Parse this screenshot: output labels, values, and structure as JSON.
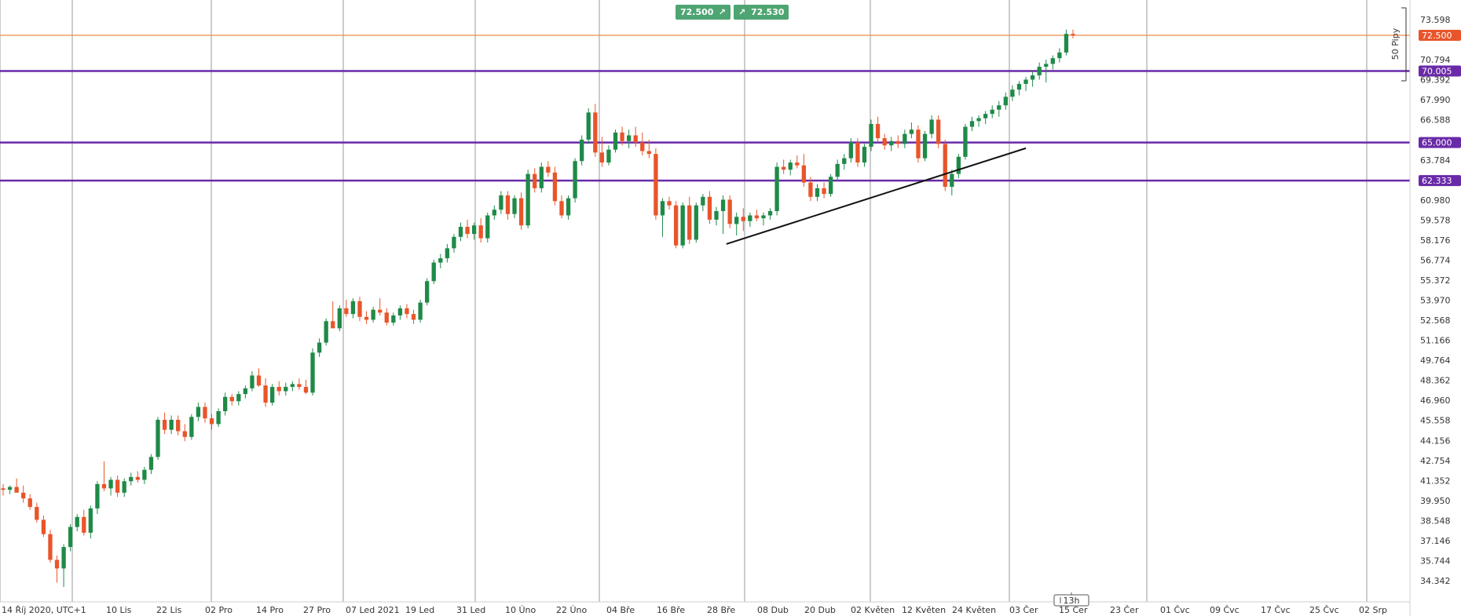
{
  "quote": {
    "sell_price": "72.500",
    "buy_price": "72.530",
    "sell_icon": "arrow-up-right-icon",
    "buy_icon": "arrow-up-right-icon"
  },
  "pips_label": "50 Pipy",
  "timer_label": "13h",
  "colors": {
    "up": "#1f8a48",
    "down": "#e8552a",
    "level": "#6a2aa8",
    "current": "#f08a4b",
    "grid": "#9a9a9a"
  },
  "chart_data": {
    "type": "candlestick",
    "title": "",
    "y_ticks": [
      "73.598",
      "70.794",
      "69.392",
      "67.990",
      "66.588",
      "63.784",
      "60.980",
      "59.578",
      "58.176",
      "56.774",
      "55.372",
      "53.970",
      "52.568",
      "51.166",
      "49.764",
      "48.362",
      "46.960",
      "45.558",
      "44.156",
      "42.754",
      "41.352",
      "39.950",
      "38.548",
      "37.146",
      "35.744",
      "34.342"
    ],
    "ylim": [
      33.7,
      74.6
    ],
    "x_ticks": [
      "14 Říj 2020, UTC+1",
      "10 Lis",
      "22 Lis",
      "02 Pro",
      "14 Pro",
      "27 Pro",
      "07 Led 2021",
      "19 Led",
      "31 Led",
      "10 Úno",
      "22 Úno",
      "04 Bře",
      "16 Bře",
      "28 Bře",
      "08 Dub",
      "20 Dub",
      "02 Květen",
      "12 Květen",
      "24 Květen",
      "03 Čer",
      "15 Čer",
      "23 Čer",
      "01 Čvc",
      "09 Čvc",
      "17 Čvc",
      "25 Čvc",
      "02 Srp"
    ],
    "levels": [
      {
        "value": 72.5,
        "label": "72.500",
        "kind": "current"
      },
      {
        "value": 70.005,
        "label": "70.005",
        "kind": "resistance"
      },
      {
        "value": 65.0,
        "label": "65.000",
        "kind": "resistance"
      },
      {
        "value": 62.333,
        "label": "62.333",
        "kind": "support"
      }
    ],
    "trendline": {
      "from": [
        36,
        57.9
      ],
      "to": [
        51,
        64.6
      ]
    },
    "candles": [
      {
        "o": 40.8,
        "h": 41.1,
        "l": 40.3,
        "c": 40.7
      },
      {
        "o": 40.7,
        "h": 41.0,
        "l": 40.4,
        "c": 40.9
      },
      {
        "o": 40.9,
        "h": 41.5,
        "l": 40.6,
        "c": 40.5
      },
      {
        "o": 40.5,
        "h": 41.0,
        "l": 39.8,
        "c": 40.1
      },
      {
        "o": 40.1,
        "h": 40.4,
        "l": 39.3,
        "c": 39.5
      },
      {
        "o": 39.5,
        "h": 39.8,
        "l": 38.4,
        "c": 38.6
      },
      {
        "o": 38.6,
        "h": 38.9,
        "l": 37.4,
        "c": 37.6
      },
      {
        "o": 37.6,
        "h": 37.9,
        "l": 35.6,
        "c": 35.8
      },
      {
        "o": 35.8,
        "h": 36.1,
        "l": 34.2,
        "c": 35.2
      },
      {
        "o": 35.2,
        "h": 36.9,
        "l": 33.9,
        "c": 36.7
      },
      {
        "o": 36.7,
        "h": 38.3,
        "l": 36.4,
        "c": 38.1
      },
      {
        "o": 38.1,
        "h": 39.0,
        "l": 37.8,
        "c": 38.8
      },
      {
        "o": 38.8,
        "h": 39.3,
        "l": 37.5,
        "c": 37.7
      },
      {
        "o": 37.7,
        "h": 39.6,
        "l": 37.3,
        "c": 39.4
      },
      {
        "o": 39.4,
        "h": 41.3,
        "l": 39.0,
        "c": 41.1
      },
      {
        "o": 41.1,
        "h": 42.7,
        "l": 40.6,
        "c": 40.8
      },
      {
        "o": 40.8,
        "h": 41.6,
        "l": 40.3,
        "c": 41.4
      },
      {
        "o": 41.4,
        "h": 41.7,
        "l": 40.2,
        "c": 40.5
      },
      {
        "o": 40.5,
        "h": 41.5,
        "l": 40.2,
        "c": 41.3
      },
      {
        "o": 41.3,
        "h": 41.9,
        "l": 41.0,
        "c": 41.6
      },
      {
        "o": 41.6,
        "h": 42.0,
        "l": 41.2,
        "c": 41.4
      },
      {
        "o": 41.4,
        "h": 42.3,
        "l": 41.1,
        "c": 42.1
      },
      {
        "o": 42.1,
        "h": 43.2,
        "l": 41.8,
        "c": 43.0
      },
      {
        "o": 43.0,
        "h": 45.8,
        "l": 42.8,
        "c": 45.6
      },
      {
        "o": 45.6,
        "h": 46.1,
        "l": 44.6,
        "c": 44.9
      },
      {
        "o": 44.9,
        "h": 45.9,
        "l": 44.6,
        "c": 45.6
      },
      {
        "o": 45.6,
        "h": 45.9,
        "l": 44.5,
        "c": 44.8
      },
      {
        "o": 44.8,
        "h": 45.3,
        "l": 44.1,
        "c": 44.4
      },
      {
        "o": 44.4,
        "h": 46.0,
        "l": 44.2,
        "c": 45.8
      },
      {
        "o": 45.8,
        "h": 46.8,
        "l": 45.5,
        "c": 46.5
      },
      {
        "o": 46.5,
        "h": 46.8,
        "l": 45.4,
        "c": 45.7
      },
      {
        "o": 45.7,
        "h": 46.0,
        "l": 44.9,
        "c": 45.3
      },
      {
        "o": 45.3,
        "h": 46.4,
        "l": 45.1,
        "c": 46.2
      },
      {
        "o": 46.2,
        "h": 47.5,
        "l": 45.9,
        "c": 47.2
      },
      {
        "o": 47.2,
        "h": 47.4,
        "l": 46.6,
        "c": 46.9
      },
      {
        "o": 46.9,
        "h": 47.6,
        "l": 46.6,
        "c": 47.4
      },
      {
        "o": 47.4,
        "h": 48.0,
        "l": 47.1,
        "c": 47.8
      },
      {
        "o": 47.8,
        "h": 49.0,
        "l": 47.6,
        "c": 48.7
      },
      {
        "o": 48.7,
        "h": 49.2,
        "l": 47.9,
        "c": 48.0
      },
      {
        "o": 48.0,
        "h": 48.5,
        "l": 46.5,
        "c": 46.8
      },
      {
        "o": 46.8,
        "h": 48.1,
        "l": 46.6,
        "c": 47.9
      },
      {
        "o": 47.9,
        "h": 48.3,
        "l": 47.3,
        "c": 47.6
      },
      {
        "o": 47.6,
        "h": 48.2,
        "l": 47.3,
        "c": 47.9
      },
      {
        "o": 47.9,
        "h": 48.3,
        "l": 47.6,
        "c": 48.1
      },
      {
        "o": 48.1,
        "h": 48.5,
        "l": 47.7,
        "c": 47.9
      },
      {
        "o": 47.9,
        "h": 48.4,
        "l": 47.4,
        "c": 47.5
      },
      {
        "o": 47.5,
        "h": 50.6,
        "l": 47.3,
        "c": 50.3
      },
      {
        "o": 50.3,
        "h": 51.3,
        "l": 50.0,
        "c": 51.0
      },
      {
        "o": 51.0,
        "h": 52.7,
        "l": 50.8,
        "c": 52.5
      },
      {
        "o": 52.5,
        "h": 53.9,
        "l": 52.2,
        "c": 52.0
      },
      {
        "o": 52.0,
        "h": 53.6,
        "l": 51.8,
        "c": 53.4
      },
      {
        "o": 53.4,
        "h": 54.0,
        "l": 52.8,
        "c": 53.0
      },
      {
        "o": 53.0,
        "h": 54.1,
        "l": 52.7,
        "c": 53.9
      },
      {
        "o": 53.9,
        "h": 54.2,
        "l": 52.5,
        "c": 52.8
      },
      {
        "o": 52.8,
        "h": 53.2,
        "l": 52.3,
        "c": 52.6
      },
      {
        "o": 52.6,
        "h": 53.5,
        "l": 52.4,
        "c": 53.3
      },
      {
        "o": 53.3,
        "h": 54.1,
        "l": 52.9,
        "c": 53.1
      },
      {
        "o": 53.1,
        "h": 53.4,
        "l": 52.2,
        "c": 52.4
      },
      {
        "o": 52.4,
        "h": 53.1,
        "l": 52.2,
        "c": 52.9
      },
      {
        "o": 52.9,
        "h": 53.6,
        "l": 52.6,
        "c": 53.4
      },
      {
        "o": 53.4,
        "h": 53.7,
        "l": 52.7,
        "c": 53.0
      },
      {
        "o": 53.0,
        "h": 53.3,
        "l": 52.3,
        "c": 52.6
      },
      {
        "o": 52.6,
        "h": 54.0,
        "l": 52.4,
        "c": 53.8
      },
      {
        "o": 53.8,
        "h": 55.5,
        "l": 53.6,
        "c": 55.3
      },
      {
        "o": 55.3,
        "h": 56.8,
        "l": 55.1,
        "c": 56.6
      },
      {
        "o": 56.6,
        "h": 57.2,
        "l": 56.2,
        "c": 56.9
      },
      {
        "o": 56.9,
        "h": 57.9,
        "l": 56.6,
        "c": 57.6
      },
      {
        "o": 57.6,
        "h": 58.6,
        "l": 57.3,
        "c": 58.4
      },
      {
        "o": 58.4,
        "h": 59.4,
        "l": 58.1,
        "c": 59.1
      },
      {
        "o": 59.1,
        "h": 59.6,
        "l": 58.3,
        "c": 58.6
      },
      {
        "o": 58.6,
        "h": 59.4,
        "l": 58.2,
        "c": 59.2
      },
      {
        "o": 59.2,
        "h": 59.7,
        "l": 58.0,
        "c": 58.3
      },
      {
        "o": 58.3,
        "h": 60.1,
        "l": 58.0,
        "c": 59.9
      },
      {
        "o": 59.9,
        "h": 60.6,
        "l": 59.6,
        "c": 60.3
      },
      {
        "o": 60.3,
        "h": 61.6,
        "l": 60.0,
        "c": 61.3
      },
      {
        "o": 61.3,
        "h": 61.6,
        "l": 59.6,
        "c": 60.0
      },
      {
        "o": 60.0,
        "h": 61.3,
        "l": 59.7,
        "c": 61.1
      },
      {
        "o": 61.1,
        "h": 61.5,
        "l": 58.9,
        "c": 59.2
      },
      {
        "o": 59.2,
        "h": 63.1,
        "l": 59.0,
        "c": 62.8
      },
      {
        "o": 62.8,
        "h": 63.2,
        "l": 61.5,
        "c": 61.8
      },
      {
        "o": 61.8,
        "h": 63.6,
        "l": 61.5,
        "c": 63.3
      },
      {
        "o": 63.3,
        "h": 63.7,
        "l": 62.6,
        "c": 62.9
      },
      {
        "o": 62.9,
        "h": 63.3,
        "l": 60.6,
        "c": 60.9
      },
      {
        "o": 60.9,
        "h": 61.3,
        "l": 59.7,
        "c": 59.9
      },
      {
        "o": 59.9,
        "h": 61.3,
        "l": 59.6,
        "c": 61.1
      },
      {
        "o": 61.1,
        "h": 63.9,
        "l": 60.8,
        "c": 63.7
      },
      {
        "o": 63.7,
        "h": 65.5,
        "l": 63.4,
        "c": 65.2
      },
      {
        "o": 65.2,
        "h": 67.4,
        "l": 64.9,
        "c": 67.1
      },
      {
        "o": 67.1,
        "h": 67.7,
        "l": 64.0,
        "c": 64.3
      },
      {
        "o": 64.3,
        "h": 65.4,
        "l": 63.3,
        "c": 63.6
      },
      {
        "o": 63.6,
        "h": 64.8,
        "l": 63.4,
        "c": 64.5
      },
      {
        "o": 64.5,
        "h": 65.9,
        "l": 64.3,
        "c": 65.7
      },
      {
        "o": 65.7,
        "h": 66.1,
        "l": 64.8,
        "c": 65.1
      },
      {
        "o": 65.1,
        "h": 65.9,
        "l": 64.6,
        "c": 65.5
      },
      {
        "o": 65.5,
        "h": 66.1,
        "l": 64.7,
        "c": 65.0
      },
      {
        "o": 65.0,
        "h": 65.7,
        "l": 64.1,
        "c": 64.4
      },
      {
        "o": 64.4,
        "h": 65.2,
        "l": 63.9,
        "c": 64.2
      },
      {
        "o": 64.2,
        "h": 64.6,
        "l": 59.6,
        "c": 59.9
      },
      {
        "o": 59.9,
        "h": 61.1,
        "l": 58.4,
        "c": 60.9
      },
      {
        "o": 60.9,
        "h": 61.2,
        "l": 60.3,
        "c": 60.6
      },
      {
        "o": 60.6,
        "h": 60.9,
        "l": 57.6,
        "c": 57.8
      },
      {
        "o": 57.8,
        "h": 60.8,
        "l": 57.6,
        "c": 60.6
      },
      {
        "o": 60.6,
        "h": 61.2,
        "l": 57.9,
        "c": 58.2
      },
      {
        "o": 58.2,
        "h": 60.8,
        "l": 58.0,
        "c": 60.6
      },
      {
        "o": 60.6,
        "h": 61.4,
        "l": 60.2,
        "c": 61.2
      },
      {
        "o": 61.2,
        "h": 61.6,
        "l": 59.3,
        "c": 59.6
      },
      {
        "o": 59.6,
        "h": 60.5,
        "l": 59.2,
        "c": 60.2
      },
      {
        "o": 60.2,
        "h": 61.3,
        "l": 58.6,
        "c": 61.0
      },
      {
        "o": 61.0,
        "h": 61.3,
        "l": 59.0,
        "c": 59.3
      },
      {
        "o": 59.3,
        "h": 60.1,
        "l": 58.5,
        "c": 59.8
      },
      {
        "o": 59.8,
        "h": 60.4,
        "l": 58.8,
        "c": 59.5
      },
      {
        "o": 59.5,
        "h": 60.1,
        "l": 59.1,
        "c": 59.9
      },
      {
        "o": 59.9,
        "h": 60.3,
        "l": 59.5,
        "c": 59.7
      },
      {
        "o": 59.7,
        "h": 60.1,
        "l": 59.2,
        "c": 59.9
      },
      {
        "o": 59.9,
        "h": 60.4,
        "l": 59.6,
        "c": 60.2
      },
      {
        "o": 60.2,
        "h": 63.6,
        "l": 59.9,
        "c": 63.3
      },
      {
        "o": 63.3,
        "h": 63.8,
        "l": 62.8,
        "c": 63.1
      },
      {
        "o": 63.1,
        "h": 63.8,
        "l": 62.7,
        "c": 63.6
      },
      {
        "o": 63.6,
        "h": 64.1,
        "l": 63.2,
        "c": 63.4
      },
      {
        "o": 63.4,
        "h": 64.2,
        "l": 61.9,
        "c": 62.2
      },
      {
        "o": 62.2,
        "h": 62.6,
        "l": 60.9,
        "c": 61.2
      },
      {
        "o": 61.2,
        "h": 62.1,
        "l": 60.9,
        "c": 61.8
      },
      {
        "o": 61.8,
        "h": 62.2,
        "l": 61.1,
        "c": 61.4
      },
      {
        "o": 61.4,
        "h": 62.8,
        "l": 61.2,
        "c": 62.6
      },
      {
        "o": 62.6,
        "h": 63.8,
        "l": 62.3,
        "c": 63.5
      },
      {
        "o": 63.5,
        "h": 64.2,
        "l": 63.1,
        "c": 63.9
      },
      {
        "o": 63.9,
        "h": 65.3,
        "l": 63.6,
        "c": 65.0
      },
      {
        "o": 65.0,
        "h": 65.3,
        "l": 63.3,
        "c": 63.6
      },
      {
        "o": 63.6,
        "h": 64.9,
        "l": 63.3,
        "c": 64.7
      },
      {
        "o": 64.7,
        "h": 66.6,
        "l": 64.4,
        "c": 66.3
      },
      {
        "o": 66.3,
        "h": 66.8,
        "l": 65.0,
        "c": 65.3
      },
      {
        "o": 65.3,
        "h": 65.6,
        "l": 64.5,
        "c": 64.8
      },
      {
        "o": 64.8,
        "h": 65.4,
        "l": 64.4,
        "c": 65.1
      },
      {
        "o": 65.1,
        "h": 65.5,
        "l": 64.6,
        "c": 64.9
      },
      {
        "o": 64.9,
        "h": 65.9,
        "l": 64.6,
        "c": 65.6
      },
      {
        "o": 65.6,
        "h": 66.4,
        "l": 65.3,
        "c": 65.9
      },
      {
        "o": 65.9,
        "h": 66.2,
        "l": 63.6,
        "c": 63.9
      },
      {
        "o": 63.9,
        "h": 65.8,
        "l": 63.7,
        "c": 65.6
      },
      {
        "o": 65.6,
        "h": 66.9,
        "l": 65.3,
        "c": 66.6
      },
      {
        "o": 66.6,
        "h": 66.9,
        "l": 64.6,
        "c": 64.9
      },
      {
        "o": 64.9,
        "h": 65.2,
        "l": 61.6,
        "c": 61.9
      },
      {
        "o": 61.9,
        "h": 63.1,
        "l": 61.3,
        "c": 62.8
      },
      {
        "o": 62.8,
        "h": 64.2,
        "l": 62.5,
        "c": 64.0
      },
      {
        "o": 64.0,
        "h": 66.3,
        "l": 63.8,
        "c": 66.1
      },
      {
        "o": 66.1,
        "h": 66.8,
        "l": 65.8,
        "c": 66.5
      },
      {
        "o": 66.5,
        "h": 66.9,
        "l": 66.1,
        "c": 66.7
      },
      {
        "o": 66.7,
        "h": 67.2,
        "l": 66.3,
        "c": 67.0
      },
      {
        "o": 67.0,
        "h": 67.6,
        "l": 66.7,
        "c": 67.3
      },
      {
        "o": 67.3,
        "h": 67.9,
        "l": 66.8,
        "c": 67.6
      },
      {
        "o": 67.6,
        "h": 68.5,
        "l": 67.3,
        "c": 68.2
      },
      {
        "o": 68.2,
        "h": 69.0,
        "l": 67.9,
        "c": 68.7
      },
      {
        "o": 68.7,
        "h": 69.3,
        "l": 68.3,
        "c": 69.1
      },
      {
        "o": 69.1,
        "h": 69.6,
        "l": 68.6,
        "c": 69.4
      },
      {
        "o": 69.4,
        "h": 70.0,
        "l": 68.9,
        "c": 69.7
      },
      {
        "o": 69.7,
        "h": 70.6,
        "l": 69.4,
        "c": 70.3
      },
      {
        "o": 70.3,
        "h": 70.8,
        "l": 69.2,
        "c": 70.5
      },
      {
        "o": 70.5,
        "h": 71.1,
        "l": 70.1,
        "c": 70.9
      },
      {
        "o": 70.9,
        "h": 71.6,
        "l": 70.6,
        "c": 71.3
      },
      {
        "o": 71.3,
        "h": 72.9,
        "l": 71.1,
        "c": 72.6
      },
      {
        "o": 72.6,
        "h": 72.9,
        "l": 72.3,
        "c": 72.5
      }
    ]
  }
}
